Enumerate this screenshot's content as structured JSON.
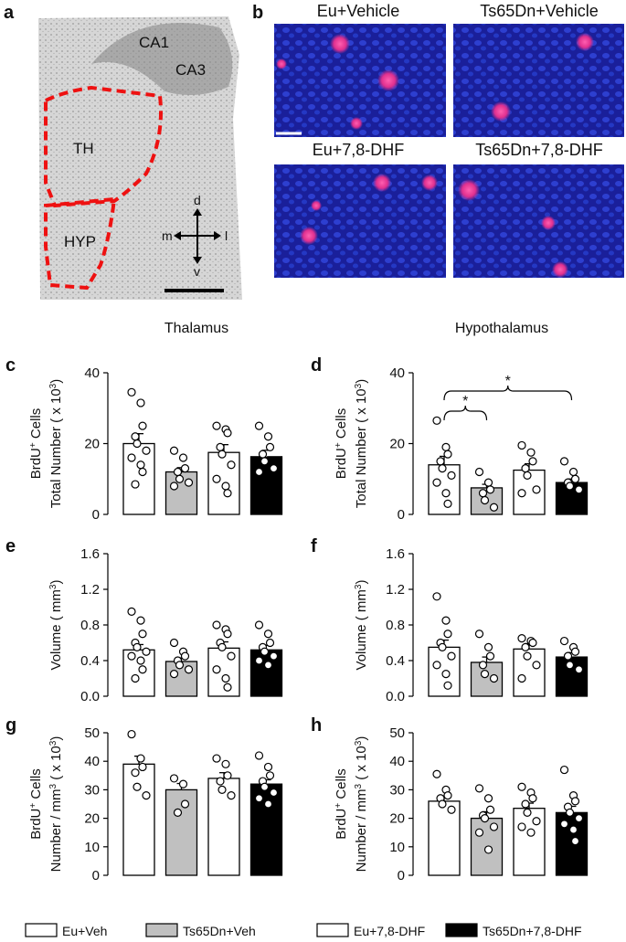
{
  "figure": {
    "panel_a": {
      "label": "a",
      "regions": [
        "CA1",
        "CA3",
        "TH",
        "HYP"
      ],
      "axes": [
        "d",
        "m",
        "l",
        "v"
      ]
    },
    "panel_b": {
      "label": "b",
      "images": [
        "Eu+Vehicle",
        "Ts65Dn+Vehicle",
        "Eu+7,8-DHF",
        "Ts65Dn+7,8-DHF"
      ]
    }
  },
  "legend": [
    {
      "name": "Eu+Veh",
      "color": "#ffffff"
    },
    {
      "name": "Ts65Dn+Veh",
      "color": "#c0c0c0"
    },
    {
      "name": "Eu+7,8-DHF",
      "color": "#ffffff"
    },
    {
      "name": "Ts65Dn+7,8-DHF",
      "color": "#000000"
    }
  ],
  "chart_data": [
    {
      "type": "bar",
      "panel": "c",
      "title": "Thalamus",
      "ylabel": [
        [
          "BrdU",
          "+",
          " Cells"
        ],
        [
          "Total Number (  x 10",
          "3",
          ")"
        ]
      ],
      "ylim": [
        0,
        40
      ],
      "yticks": [
        0,
        20,
        40
      ],
      "values": [
        20,
        12,
        17.5,
        16.3
      ],
      "errors": [
        2.8,
        1.2,
        2.2,
        1.8
      ],
      "points": [
        [
          34.5,
          31.5,
          25,
          22,
          20,
          18,
          16,
          14,
          12,
          8.5
        ],
        [
          18,
          16,
          13,
          12,
          10,
          9,
          8
        ],
        [
          25,
          24,
          23,
          19,
          17,
          14,
          10,
          8,
          6
        ],
        [
          25,
          22,
          19,
          17,
          15,
          13,
          12
        ]
      ]
    },
    {
      "type": "bar",
      "panel": "d",
      "title": "Hypothalamus",
      "ylabel": [
        [
          "BrdU",
          "+",
          " Cells"
        ],
        [
          "Total Number (  x 10",
          "3",
          ")"
        ]
      ],
      "ylim": [
        0,
        40
      ],
      "yticks": [
        0,
        20,
        40
      ],
      "values": [
        14,
        7.5,
        12.5,
        9
      ],
      "errors": [
        2.4,
        1,
        1.8,
        1
      ],
      "points": [
        [
          26.5,
          19,
          17,
          15,
          13,
          11,
          9,
          6,
          3
        ],
        [
          12,
          9,
          7,
          6,
          4,
          2
        ],
        [
          19.5,
          17.5,
          15,
          13,
          11,
          7,
          6
        ],
        [
          15,
          12,
          10,
          9,
          8,
          7
        ]
      ],
      "significance": [
        {
          "from": 0,
          "to": 1,
          "label": "*"
        },
        {
          "from": 0,
          "to": 3,
          "label": "*"
        }
      ]
    },
    {
      "type": "bar",
      "panel": "e",
      "ylabel": [
        [
          "Volume (  mm",
          "3",
          ")"
        ]
      ],
      "ylim": [
        0,
        1.6
      ],
      "yticks": [
        {
          "value": 0,
          "label": "0.0"
        },
        0.4,
        0.8,
        1.2,
        1.6
      ],
      "values": [
        0.52,
        0.39,
        0.54,
        0.52
      ],
      "errors": [
        0.06,
        0.04,
        0.07,
        0.05
      ],
      "points": [
        [
          0.95,
          0.85,
          0.7,
          0.6,
          0.55,
          0.5,
          0.45,
          0.4,
          0.3,
          0.2
        ],
        [
          0.6,
          0.5,
          0.45,
          0.4,
          0.35,
          0.3,
          0.25
        ],
        [
          0.8,
          0.75,
          0.7,
          0.6,
          0.55,
          0.45,
          0.3,
          0.2,
          0.1
        ],
        [
          0.8,
          0.7,
          0.6,
          0.55,
          0.5,
          0.45,
          0.4,
          0.35
        ]
      ]
    },
    {
      "type": "bar",
      "panel": "f",
      "ylabel": [
        [
          "Volume (  mm",
          "3",
          ")"
        ]
      ],
      "ylim": [
        0,
        1.6
      ],
      "yticks": [
        {
          "value": 0,
          "label": "0.0"
        },
        0.4,
        0.8,
        1.2,
        1.6
      ],
      "values": [
        0.55,
        0.38,
        0.53,
        0.44
      ],
      "errors": [
        0.08,
        0.06,
        0.06,
        0.05
      ],
      "points": [
        [
          1.12,
          0.85,
          0.7,
          0.6,
          0.55,
          0.45,
          0.35,
          0.25,
          0.12
        ],
        [
          0.7,
          0.55,
          0.45,
          0.35,
          0.25,
          0.2
        ],
        [
          0.65,
          0.62,
          0.6,
          0.55,
          0.45,
          0.35,
          0.2
        ],
        [
          0.62,
          0.55,
          0.5,
          0.45,
          0.35,
          0.3
        ]
      ]
    },
    {
      "type": "bar",
      "panel": "g",
      "ylabel": [
        [
          "BrdU",
          "+",
          " Cells"
        ],
        [
          "Number / mm",
          "3",
          " (  x 10",
          "3",
          ")"
        ]
      ],
      "ylim": [
        0,
        50
      ],
      "yticks": [
        0,
        10,
        20,
        30,
        40,
        50
      ],
      "values": [
        39,
        30,
        34,
        32
      ],
      "errors": [
        2.8,
        2.2,
        2,
        1.5
      ],
      "points": [
        [
          49.5,
          41,
          38,
          36,
          31,
          28
        ],
        [
          34,
          32,
          25,
          22
        ],
        [
          41,
          39,
          35,
          33,
          30,
          28
        ],
        [
          42,
          38,
          35,
          33,
          31,
          29,
          27,
          25
        ]
      ]
    },
    {
      "type": "bar",
      "panel": "h",
      "ylabel": [
        [
          "BrdU",
          "+",
          " Cells"
        ],
        [
          "Number / mm",
          "3",
          " (  x 10",
          "3",
          ")"
        ]
      ],
      "ylim": [
        0,
        50
      ],
      "yticks": [
        0,
        10,
        20,
        30,
        40,
        50
      ],
      "values": [
        26,
        20,
        23.5,
        22
      ],
      "errors": [
        1.6,
        2.3,
        1.8,
        2.2
      ],
      "points": [
        [
          35.5,
          30,
          28,
          27,
          25,
          23
        ],
        [
          30.5,
          27,
          23,
          21,
          20,
          17,
          15,
          9
        ],
        [
          31,
          29,
          27,
          25,
          22,
          19,
          17,
          15
        ],
        [
          37,
          28,
          26,
          24,
          22,
          20,
          18,
          16,
          12
        ]
      ]
    }
  ]
}
